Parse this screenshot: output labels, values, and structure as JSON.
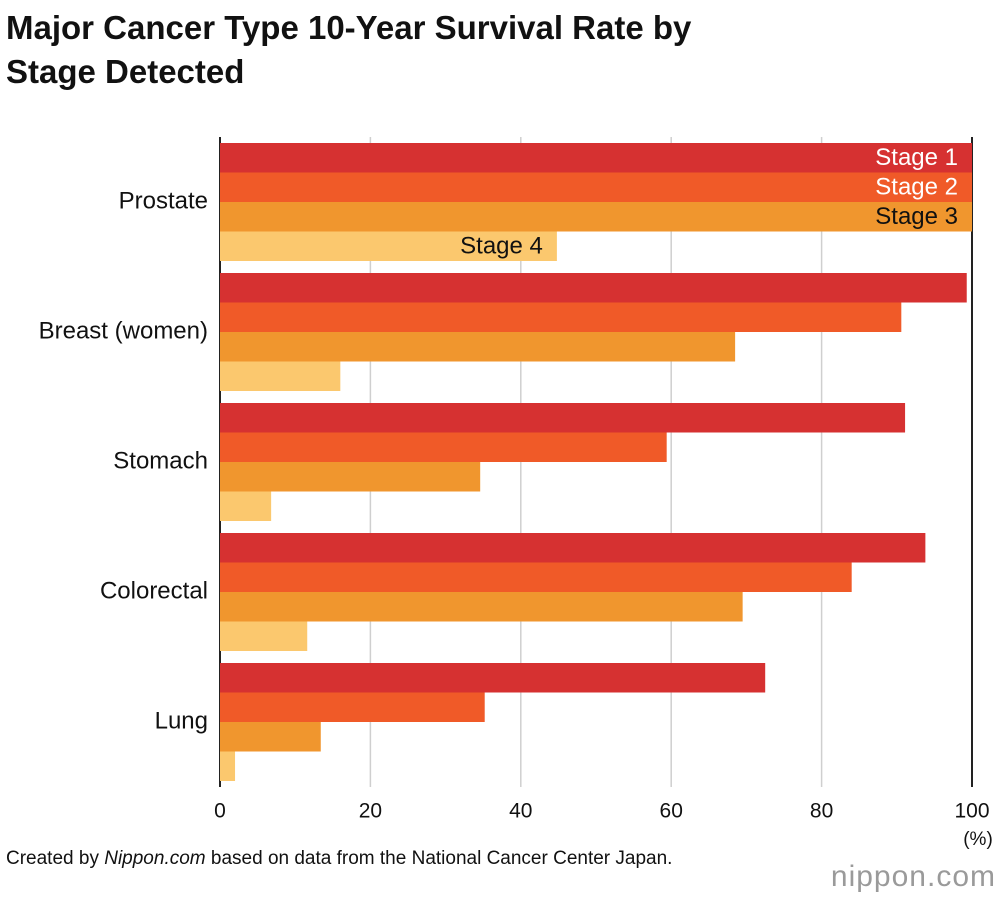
{
  "chart_data": {
    "type": "hbar",
    "title": "Major Cancer Type 10-Year Survival Rate by Stage Detected",
    "categories": [
      "Prostate",
      "Breast (women)",
      "Stomach",
      "Colorectal",
      "Lung"
    ],
    "series": [
      {
        "name": "Stage 1",
        "color": "#d63131",
        "values": [
          100,
          99.3,
          91.1,
          93.8,
          72.5
        ]
      },
      {
        "name": "Stage 2",
        "color": "#f05a28",
        "values": [
          100,
          90.6,
          59.4,
          84.0,
          35.2
        ]
      },
      {
        "name": "Stage 3",
        "color": "#f0962e",
        "values": [
          100,
          68.5,
          34.6,
          69.5,
          13.4
        ]
      },
      {
        "name": "Stage 4",
        "color": "#fbc86e",
        "values": [
          44.8,
          16.0,
          6.8,
          11.6,
          2.0
        ]
      }
    ],
    "xlim": [
      0,
      100
    ],
    "xticks": [
      0,
      20,
      40,
      60,
      80,
      100
    ],
    "xlabel": "(%)",
    "grid": true,
    "source": {
      "prefix": "Created by ",
      "site": "Nippon.com",
      "suffix": " based on data from the National Cancer Center Japan."
    },
    "logo": "nippon.com"
  }
}
